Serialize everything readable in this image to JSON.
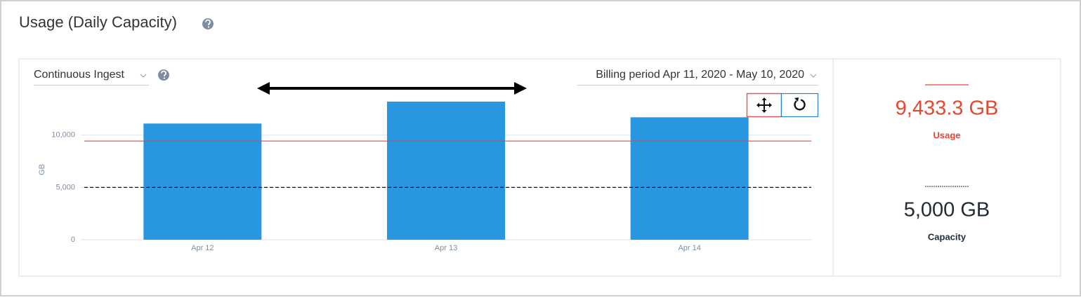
{
  "header": {
    "title": "Usage (Daily Capacity)"
  },
  "filters": {
    "ingest": "Continuous Ingest",
    "billing_period": "Billing period Apr 11, 2020 - May 10, 2020"
  },
  "chart_data": {
    "type": "bar",
    "categories": [
      "Apr 12",
      "Apr 13",
      "Apr 14"
    ],
    "values": [
      11100,
      13200,
      11700
    ],
    "color": "#2896e0",
    "y_label": "GB",
    "ylim": [
      0,
      14000
    ],
    "yticks": [
      0,
      {
        "value": 5000,
        "label": "5,000"
      },
      {
        "value": 10000,
        "label": "10,000"
      }
    ],
    "grid": true,
    "reference_lines": [
      {
        "value": 9433.3,
        "color": "#e8472f",
        "dashed": false
      },
      {
        "value": 5000,
        "color": "#111111",
        "dashed": true
      }
    ]
  },
  "summary": [
    {
      "value_label": "9,433.3 GB",
      "label": "Usage",
      "color": "#e8472f",
      "dashed": false
    },
    {
      "value_label": "5,000 GB",
      "label": "Capacity",
      "color": "#222b36",
      "dashed": true
    }
  ]
}
